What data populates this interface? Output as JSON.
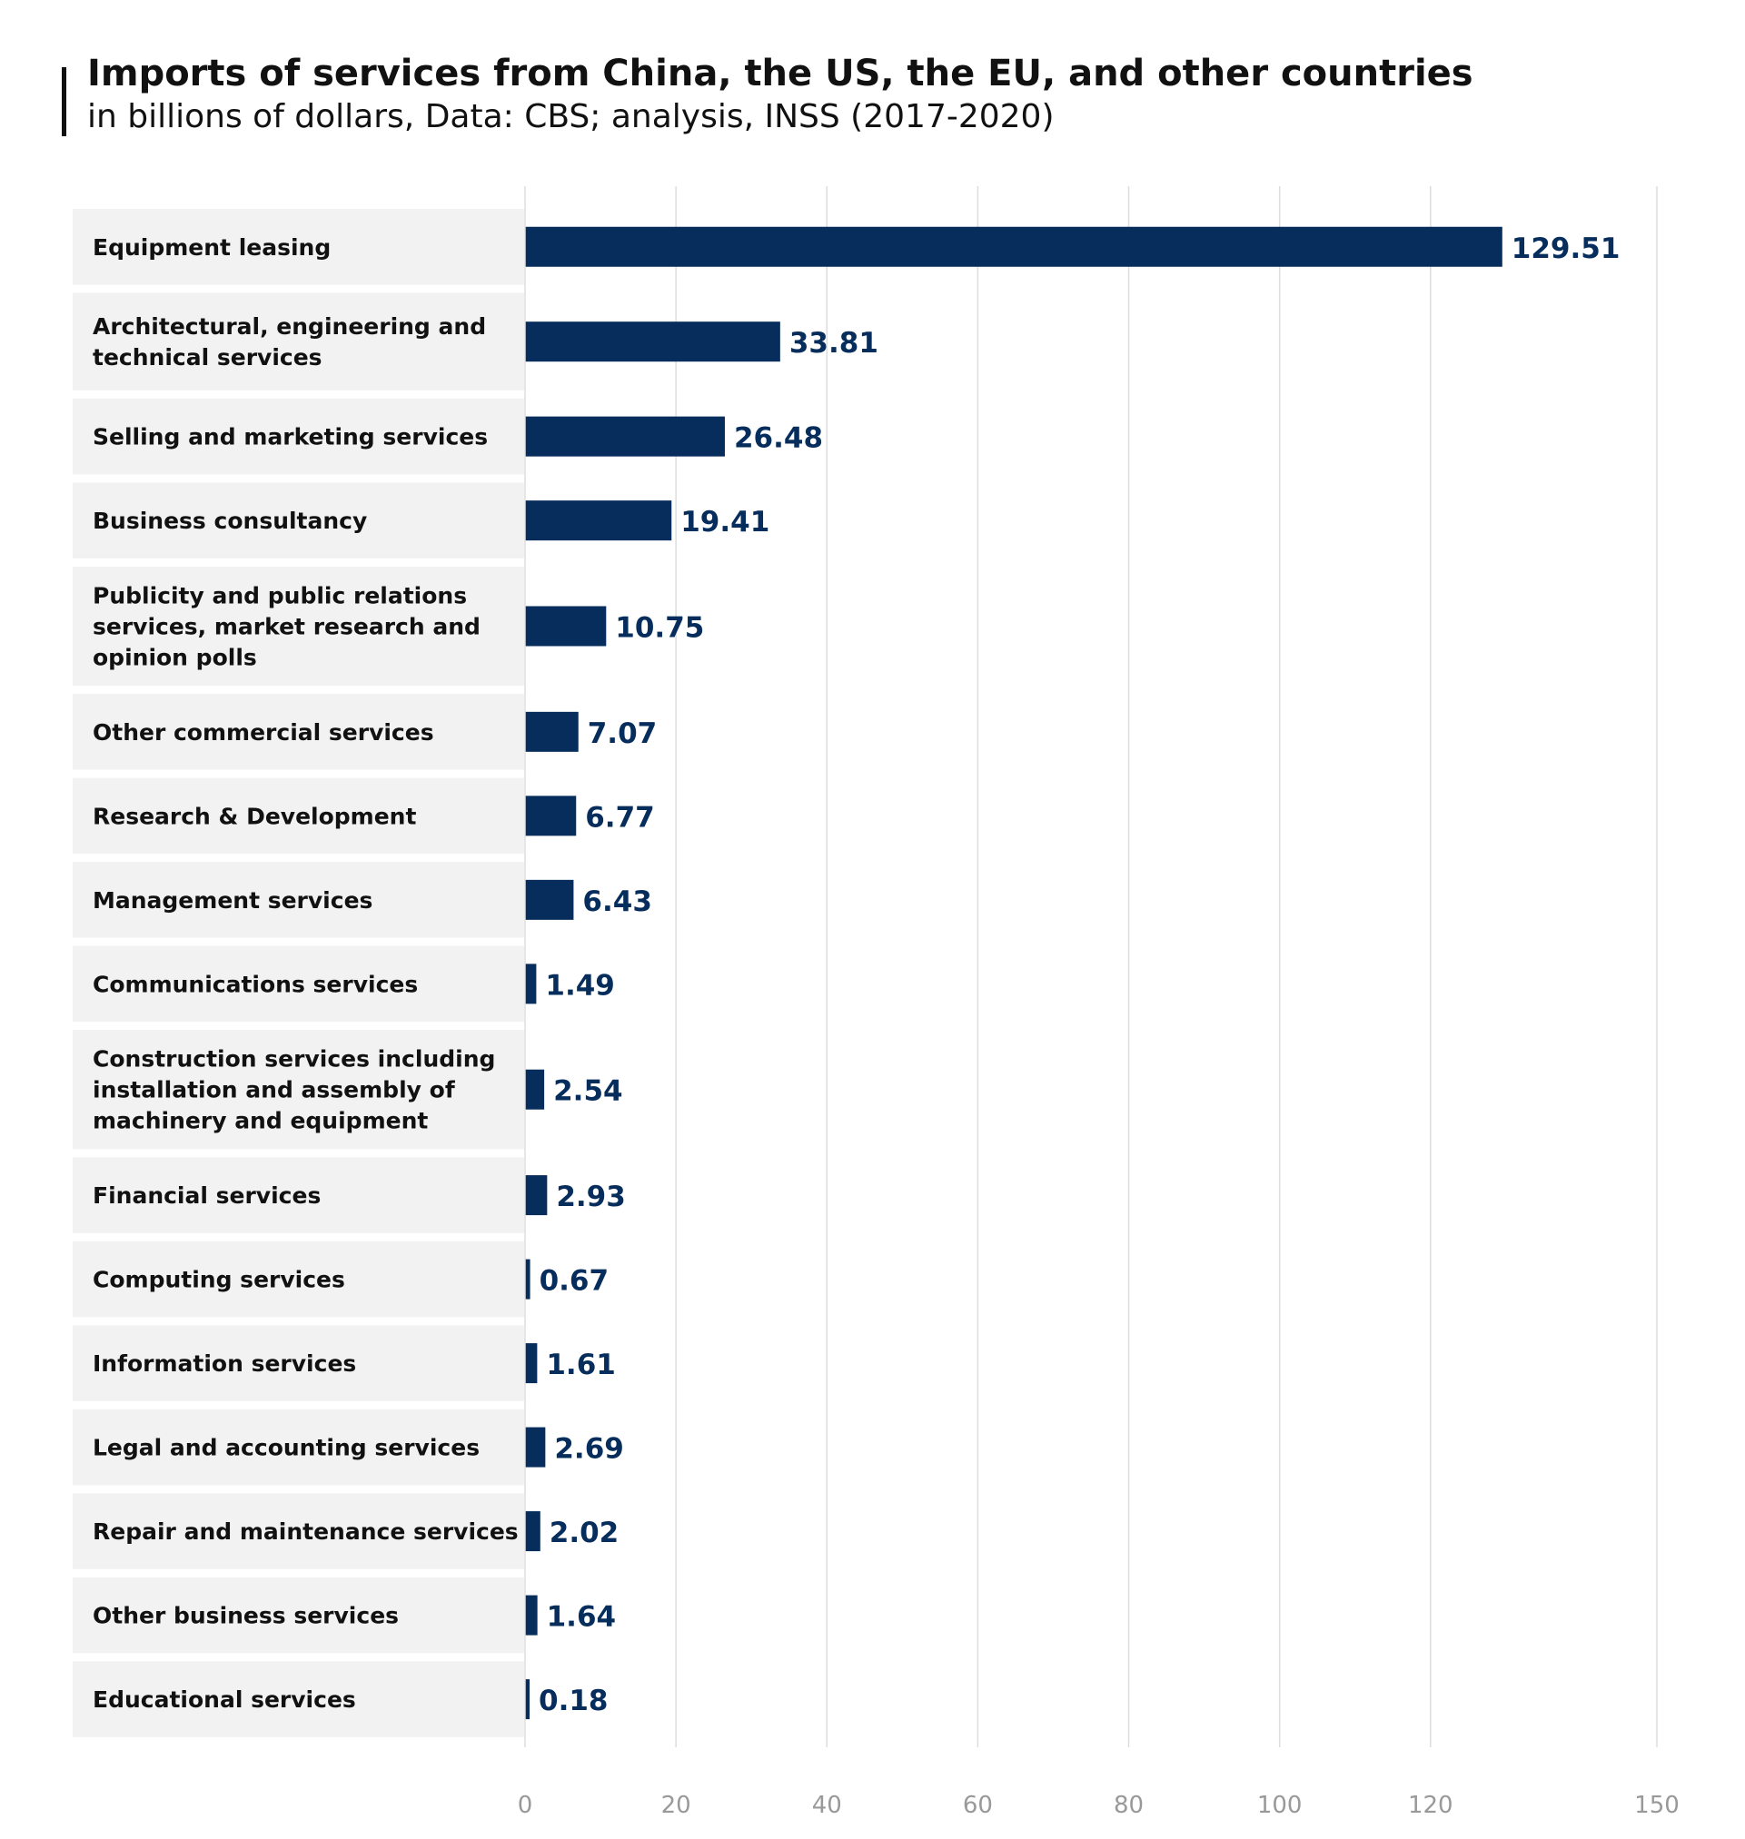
{
  "chart_data": {
    "type": "bar",
    "orientation": "horizontal",
    "title": "Imports of services from China, the US, the EU, and other countries",
    "subtitle": "in billions of dollars, Data: CBS; analysis, INSS (2017-2020)",
    "categories": [
      "Equipment leasing",
      "Architectural, engineering and technical services",
      "Selling and marketing services",
      "Business consultancy",
      "Publicity and public relations services, market research and opinion polls",
      "Other commercial services",
      "Research & Development",
      "Management services",
      "Communications services",
      "Construction services including installation and assembly of machinery and equipment",
      "Financial services",
      "Computing services",
      "Information services",
      "Legal and accounting services",
      "Repair and maintenance services",
      "Other business services",
      "Educational services"
    ],
    "values": [
      129.51,
      33.81,
      26.48,
      19.41,
      10.75,
      7.07,
      6.77,
      6.43,
      1.49,
      2.54,
      2.93,
      0.67,
      1.61,
      2.69,
      2.02,
      1.64,
      0.18
    ],
    "value_labels": [
      "129.51",
      "33.81",
      "26.48",
      "19.41",
      "10.75",
      "7.07",
      "6.77",
      "6.43",
      "1.49",
      "2.54",
      "2.93",
      "0.67",
      "1.61",
      "2.69",
      "2.02",
      "1.64",
      "0.18"
    ],
    "category_label_lines": [
      [
        "Equipment leasing"
      ],
      [
        "Architectural, engineering and",
        "technical services"
      ],
      [
        "Selling and marketing services"
      ],
      [
        "Business consultancy"
      ],
      [
        "Publicity and public relations",
        "services, market research and",
        "opinion polls"
      ],
      [
        "Other commercial services"
      ],
      [
        "Research & Development"
      ],
      [
        "Management services"
      ],
      [
        "Communications services"
      ],
      [
        "Construction services including",
        "installation and assembly of",
        "machinery and equipment"
      ],
      [
        "Financial services"
      ],
      [
        "Computing services"
      ],
      [
        "Information services"
      ],
      [
        "Legal and accounting services"
      ],
      [
        "Repair and maintenance services"
      ],
      [
        "Other business services"
      ],
      [
        "Educational services"
      ]
    ],
    "x_ticks": [
      0,
      20,
      40,
      60,
      80,
      100,
      120,
      150
    ],
    "x_tick_labels": [
      "0",
      "20",
      "40",
      "60",
      "80",
      "100",
      "120",
      "150"
    ],
    "xlim": [
      0,
      150
    ],
    "xlabel": "",
    "ylabel": "",
    "grid": true,
    "legend": "none",
    "colors": {
      "bar": "#062d5b",
      "value_label": "#062d5b",
      "label_panel": "#f2f2f2",
      "gridline": "#dddddd",
      "tick_label": "#999999",
      "title": "#111111"
    }
  }
}
